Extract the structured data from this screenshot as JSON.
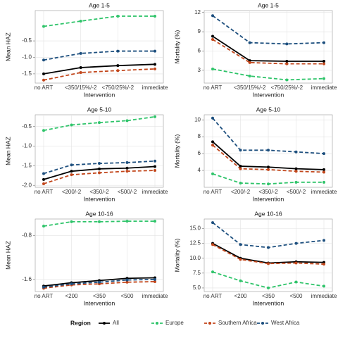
{
  "legend_title": "Region",
  "chart_data": [
    {
      "type": "line",
      "title": "Age 1-5",
      "xlabel": "Intervention",
      "ylabel": "Mean HAZ",
      "categories": [
        "no ART",
        "<350/15%/-2",
        "<750/25%/-2",
        "immediate"
      ],
      "ylim": [
        -1.78,
        0.42
      ],
      "yticks": [
        {
          "value": -1.5,
          "label": "-1.5"
        },
        {
          "value": -1.0,
          "label": "-1.0"
        },
        {
          "value": -0.5,
          "label": "-0.5"
        }
      ],
      "grid": true,
      "series": [
        {
          "name": "All",
          "color": "#000000",
          "line_style": "solid",
          "values": [
            -1.5,
            -1.31,
            -1.25,
            -1.21
          ]
        },
        {
          "name": "Europe",
          "color": "#2fc46a",
          "line_style": "dashed",
          "values": [
            -0.06,
            0.1,
            0.25,
            0.25
          ]
        },
        {
          "name": "Southern Africa",
          "color": "#c2461b",
          "line_style": "dashed",
          "values": [
            -1.69,
            -1.46,
            -1.4,
            -1.35
          ]
        },
        {
          "name": "West Africa",
          "color": "#1d4f7e",
          "line_style": "dashed",
          "values": [
            -1.08,
            -0.88,
            -0.81,
            -0.81
          ]
        }
      ]
    },
    {
      "type": "line",
      "title": "Age 1-5",
      "xlabel": "Intervention",
      "ylabel": "Mortality (%)",
      "categories": [
        "no ART",
        "<350/15%/-2",
        "<750/25%/-2",
        "immediate"
      ],
      "ylim": [
        1.0,
        12.3
      ],
      "yticks": [
        3,
        6,
        9,
        12
      ],
      "grid": true,
      "series": [
        {
          "name": "All",
          "color": "#000000",
          "line_style": "solid",
          "values": [
            8.3,
            4.5,
            4.4,
            4.4
          ]
        },
        {
          "name": "Europe",
          "color": "#2fc46a",
          "line_style": "dashed",
          "values": [
            3.2,
            2.1,
            1.5,
            1.7
          ]
        },
        {
          "name": "Southern Africa",
          "color": "#c2461b",
          "line_style": "dashed",
          "values": [
            7.8,
            4.2,
            4.0,
            4.0
          ]
        },
        {
          "name": "West Africa",
          "color": "#1d4f7e",
          "line_style": "dashed",
          "values": [
            11.5,
            7.3,
            7.1,
            7.3
          ]
        }
      ]
    },
    {
      "type": "line",
      "title": "Age 5-10",
      "xlabel": "Intervention",
      "ylabel": "Mean HAZ",
      "categories": [
        "no ART",
        "<200/-2",
        "<350/-2",
        "<500/-2",
        "immediate"
      ],
      "ylim": [
        -2.05,
        -0.2
      ],
      "yticks": [
        {
          "value": -2.0,
          "label": "-2.0"
        },
        {
          "value": -1.5,
          "label": "-1.5"
        },
        {
          "value": -1.0,
          "label": "-1.0"
        },
        {
          "value": -0.5,
          "label": "-0.5"
        }
      ],
      "grid": true,
      "series": [
        {
          "name": "All",
          "color": "#000000",
          "line_style": "solid",
          "values": [
            -1.85,
            -1.64,
            -1.58,
            -1.56,
            -1.52
          ]
        },
        {
          "name": "Europe",
          "color": "#2fc46a",
          "line_style": "dashed",
          "values": [
            -0.6,
            -0.46,
            -0.4,
            -0.35,
            -0.25
          ]
        },
        {
          "name": "Southern Africa",
          "color": "#c2461b",
          "line_style": "dashed",
          "values": [
            -1.96,
            -1.73,
            -1.68,
            -1.64,
            -1.62
          ]
        },
        {
          "name": "West Africa",
          "color": "#1d4f7e",
          "line_style": "dashed",
          "values": [
            -1.7,
            -1.48,
            -1.44,
            -1.42,
            -1.38
          ]
        }
      ]
    },
    {
      "type": "line",
      "title": "Age 5-10",
      "xlabel": "Intervention",
      "ylabel": "Mortality (%)",
      "categories": [
        "no ART",
        "<200/-2",
        "<350/-2",
        "<500/-2",
        "immediate"
      ],
      "ylim": [
        2.0,
        10.6
      ],
      "yticks": [
        4,
        6,
        8,
        10
      ],
      "grid": true,
      "series": [
        {
          "name": "All",
          "color": "#000000",
          "line_style": "solid",
          "values": [
            7.4,
            4.5,
            4.4,
            4.2,
            4.1
          ]
        },
        {
          "name": "Europe",
          "color": "#2fc46a",
          "line_style": "dashed",
          "values": [
            3.6,
            2.5,
            2.4,
            2.6,
            2.6
          ]
        },
        {
          "name": "Southern Africa",
          "color": "#c2461b",
          "line_style": "dashed",
          "values": [
            7.0,
            4.2,
            4.1,
            3.9,
            3.8
          ]
        },
        {
          "name": "West Africa",
          "color": "#1d4f7e",
          "line_style": "dashed",
          "values": [
            10.2,
            6.4,
            6.4,
            6.2,
            6.0
          ]
        }
      ]
    },
    {
      "type": "line",
      "title": "Age 10-16",
      "xlabel": "Intervention",
      "ylabel": "Mean HAZ",
      "categories": [
        "no ART",
        "<200",
        "<350",
        "<500",
        "immediate"
      ],
      "ylim": [
        -1.82,
        -0.5
      ],
      "yticks": [
        -1.6,
        -0.8
      ],
      "grid": true,
      "series": [
        {
          "name": "All",
          "color": "#000000",
          "line_style": "solid",
          "values": [
            -1.72,
            -1.66,
            -1.62,
            -1.58,
            -1.57
          ]
        },
        {
          "name": "Europe",
          "color": "#2fc46a",
          "line_style": "dashed",
          "values": [
            -0.63,
            -0.55,
            -0.55,
            -0.54,
            -0.54
          ]
        },
        {
          "name": "Southern Africa",
          "color": "#c2461b",
          "line_style": "dashed",
          "values": [
            -1.76,
            -1.7,
            -1.68,
            -1.65,
            -1.64
          ]
        },
        {
          "name": "West Africa",
          "color": "#1d4f7e",
          "line_style": "dashed",
          "values": [
            -1.74,
            -1.68,
            -1.65,
            -1.61,
            -1.6
          ]
        }
      ]
    },
    {
      "type": "line",
      "title": "Age 10-16",
      "xlabel": "Intervention",
      "ylabel": "Mortality (%)",
      "categories": [
        "no ART",
        "<200",
        "<350",
        "<500",
        "immediate"
      ],
      "ylim": [
        4.4,
        16.6
      ],
      "yticks": [
        {
          "value": 5,
          "label": "5.0"
        },
        {
          "value": 7.5,
          "label": "7.5"
        },
        {
          "value": 10,
          "label": "10.0"
        },
        {
          "value": 12.5,
          "label": "12.5"
        },
        {
          "value": 15,
          "label": "15.0"
        }
      ],
      "grid": true,
      "series": [
        {
          "name": "All",
          "color": "#000000",
          "line_style": "solid",
          "values": [
            12.5,
            10.0,
            9.2,
            9.4,
            9.3
          ]
        },
        {
          "name": "Europe",
          "color": "#2fc46a",
          "line_style": "dashed",
          "values": [
            7.7,
            6.2,
            5.0,
            6.0,
            5.3
          ]
        },
        {
          "name": "Southern Africa",
          "color": "#c2461b",
          "line_style": "dashed",
          "values": [
            12.3,
            9.8,
            9.1,
            9.2,
            9.0
          ]
        },
        {
          "name": "West Africa",
          "color": "#1d4f7e",
          "line_style": "dashed",
          "values": [
            16.0,
            12.3,
            11.8,
            12.5,
            13.0
          ]
        }
      ]
    }
  ]
}
